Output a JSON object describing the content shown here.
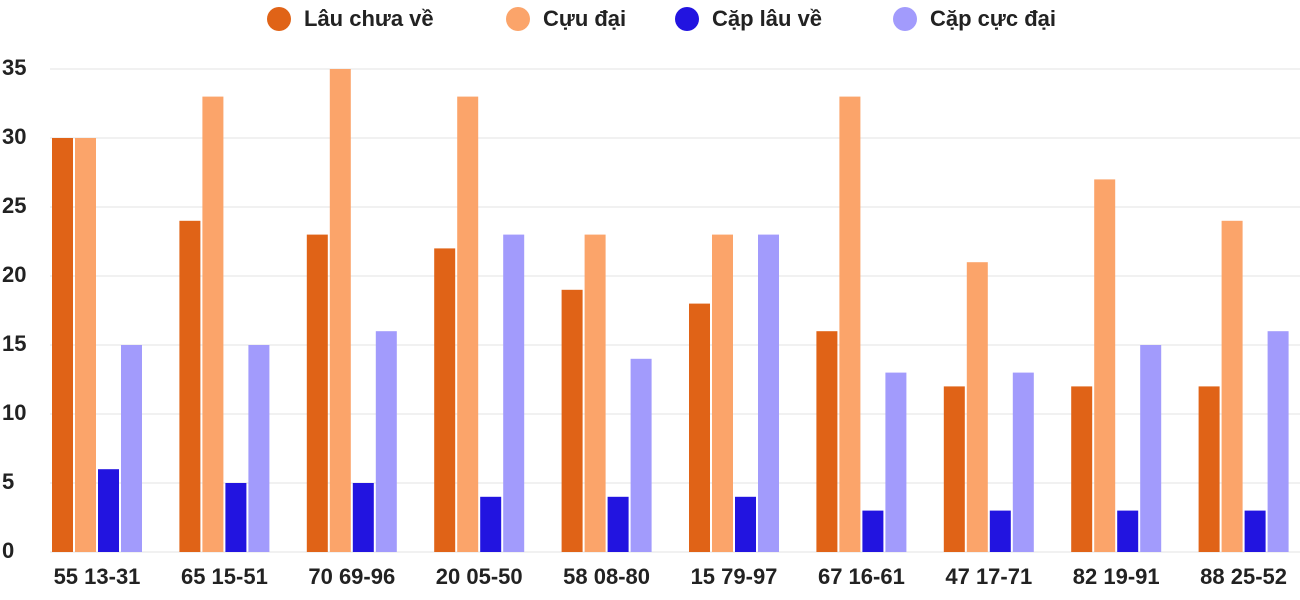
{
  "chart_data": {
    "type": "bar",
    "categories": [
      "55 13-31",
      "65 15-51",
      "70 69-96",
      "20 05-50",
      "58 08-80",
      "15 79-97",
      "67 16-61",
      "47 17-71",
      "82 19-91",
      "88 25-52"
    ],
    "series": [
      {
        "name": "Lâu chưa về",
        "color": "#e06317",
        "values": [
          30,
          24,
          23,
          22,
          19,
          18,
          16,
          12,
          12,
          12
        ]
      },
      {
        "name": "Cựu đại",
        "color": "#fba46a",
        "values": [
          30,
          33,
          35,
          33,
          23,
          23,
          33,
          21,
          27,
          24
        ]
      },
      {
        "name": "Cặp lâu về",
        "color": "#2214e0",
        "values": [
          6,
          5,
          5,
          4,
          4,
          4,
          3,
          3,
          3,
          3
        ]
      },
      {
        "name": "Cặp cực đại",
        "color": "#a29bfc",
        "values": [
          15,
          15,
          16,
          23,
          14,
          23,
          13,
          13,
          15,
          16
        ]
      }
    ],
    "ylim": [
      0,
      35
    ],
    "yticks": [
      0,
      5,
      10,
      15,
      20,
      25,
      30,
      35
    ],
    "grid": true,
    "legend": "top"
  }
}
